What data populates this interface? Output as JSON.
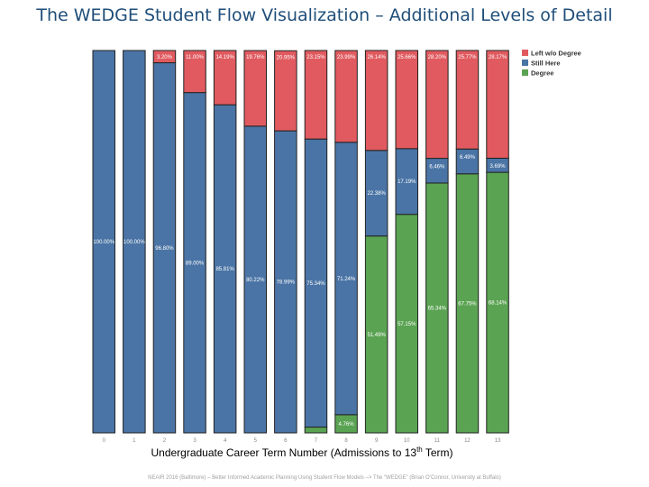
{
  "slide": {
    "title": "The WEDGE Student Flow Visualization – Additional Levels of Detail",
    "footer": "NEAIR 2016 (Baltimore) – Better Informed Academic Planning Using Student Flow Models –> The “WEDGE” (Brian O’Connor, University at Buffalo)"
  },
  "chart_data": {
    "type": "bar",
    "stacked": true,
    "categories": [
      "0",
      "1",
      "2",
      "3",
      "4",
      "5",
      "6",
      "7",
      "8",
      "9",
      "10",
      "11",
      "12",
      "13"
    ],
    "xlabel_parts": [
      "Undergraduate Career Term Number (Admissions to 13",
      "th",
      " Term)"
    ],
    "ylim": [
      0,
      100
    ],
    "legend": {
      "placement": "top-right",
      "entries": [
        "Left w/o Degree",
        "Still Here",
        "Degree"
      ]
    },
    "series": [
      {
        "name": "Degree",
        "color": "#5aa352",
        "values": [
          0,
          0,
          0,
          0,
          0,
          0,
          0,
          1.51,
          4.76,
          51.49,
          57.15,
          65.34,
          67.75,
          68.14
        ],
        "labels": [
          "",
          "",
          "",
          "",
          "",
          "",
          "",
          "",
          "4.76%",
          "51.49%",
          "57.15%",
          "65.34%",
          "67.75%",
          "68.14%"
        ]
      },
      {
        "name": "Still Here",
        "color": "#4a74a5",
        "values": [
          100,
          100,
          96.8,
          89,
          85.81,
          80.22,
          78.99,
          75.34,
          71.24,
          22.38,
          17.19,
          6.46,
          6.49,
          3.69
        ],
        "labels": [
          "100.00%",
          "100.00%",
          "96.80%",
          "89.00%",
          "85.81%",
          "80.22%",
          "78.99%",
          "75.34%",
          "71.24%",
          "22.38%",
          "17.19%",
          "6.46%",
          "6.49%",
          "3.69%"
        ]
      },
      {
        "name": "Left w/o Degree",
        "color": "#e05a5f",
        "values": [
          0,
          0,
          3.2,
          11,
          14.19,
          19.76,
          20.95,
          23.15,
          23.99,
          26.14,
          25.66,
          28.2,
          25.77,
          28.17
        ],
        "labels": [
          "",
          "",
          "3.20%",
          "11.00%",
          "14.19%",
          "19.76%",
          "20.95%",
          "23.15%",
          "23.99%",
          "26.14%",
          "25.66%",
          "28.20%",
          "25.77%",
          "28.17%"
        ]
      }
    ]
  }
}
